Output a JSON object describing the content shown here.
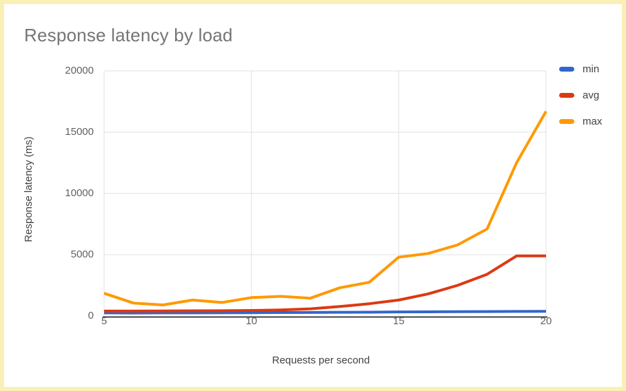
{
  "card": {
    "border_color": "#faefb5",
    "background_color": "#ffffff"
  },
  "chart_data": {
    "type": "line",
    "title": "Response latency by load",
    "xlabel": "Requests per second",
    "ylabel": "Response latency (ms)",
    "x": [
      5,
      6,
      7,
      8,
      9,
      10,
      11,
      12,
      13,
      14,
      15,
      16,
      17,
      18,
      19,
      20
    ],
    "series": [
      {
        "name": "min",
        "color": "#3366cc",
        "values": [
          250,
          240,
          250,
          250,
          260,
          270,
          280,
          290,
          300,
          310,
          330,
          340,
          350,
          360,
          370,
          380
        ]
      },
      {
        "name": "avg",
        "color": "#dc3912",
        "values": [
          400,
          400,
          410,
          420,
          430,
          450,
          490,
          580,
          770,
          1000,
          1300,
          1800,
          2500,
          3400,
          4900,
          4900
        ]
      },
      {
        "name": "max",
        "color": "#ff9900",
        "values": [
          1850,
          1050,
          900,
          1300,
          1100,
          1500,
          1600,
          1450,
          2300,
          2750,
          4800,
          5100,
          5800,
          7100,
          12500,
          16700
        ]
      }
    ],
    "xlim": [
      5,
      20
    ],
    "ylim": [
      0,
      20000
    ],
    "x_ticks": [
      5,
      10,
      15,
      20
    ],
    "y_ticks": [
      0,
      5000,
      10000,
      15000,
      20000
    ],
    "grid": true,
    "legend_position": "right",
    "gridline_color": "#e0e0e0",
    "axis_line_color": "#424242"
  }
}
